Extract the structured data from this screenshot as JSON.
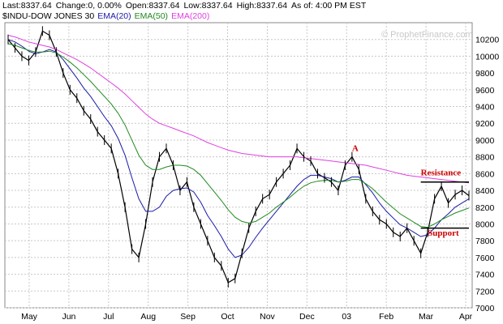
{
  "quote": {
    "last": "Last:8337.64",
    "change": "Change:0, 0.00%",
    "open": "Open:8337.64",
    "low": "Low:8337.64",
    "high": "High:8337.64",
    "asof": "As of: 4:00 PM EST"
  },
  "legend": {
    "symbol": "$INDU-DOW JONES 30",
    "ema20": "EMA(20)",
    "ema50": "EMA(50)",
    "ema200": "EMA(200)"
  },
  "watermark": "© ProphetFinance.com",
  "colors": {
    "price": "#000000",
    "ema20": "#1a1aa8",
    "ema50": "#1f8a1f",
    "ema200": "#e040e0",
    "annotation": "#cc0000",
    "grid": "#c8c8c8"
  },
  "chart_data": {
    "type": "line",
    "ylim": [
      7000,
      10400
    ],
    "yticks": [
      7000,
      7200,
      7400,
      7600,
      7800,
      8000,
      8200,
      8400,
      8600,
      8800,
      9000,
      9200,
      9400,
      9600,
      9800,
      10000,
      10200
    ],
    "xticks": [
      "May",
      "Jun",
      "Jul",
      "Aug",
      "Sep",
      "Oct",
      "Nov",
      "Dec",
      "03",
      "Feb",
      "Mar",
      "Apr"
    ],
    "grid": true,
    "series": [
      {
        "key": "price",
        "values": [
          10200,
          10100,
          10000,
          9950,
          10050,
          10300,
          10250,
          10050,
          9800,
          9600,
          9500,
          9350,
          9250,
          9100,
          9000,
          8900,
          8600,
          8200,
          7700,
          7600,
          8000,
          8500,
          8800,
          8900,
          8700,
          8400,
          8500,
          8200,
          8000,
          7800,
          7600,
          7500,
          7300,
          7350,
          7650,
          7950,
          8150,
          8300,
          8350,
          8500,
          8600,
          8700,
          8900,
          8800,
          8750,
          8600,
          8550,
          8500,
          8400,
          8700,
          8800,
          8650,
          8300,
          8150,
          8050,
          8000,
          7900,
          7850,
          7950,
          7800,
          7650,
          7900,
          8300,
          8450,
          8250,
          8350,
          8400,
          8337.64
        ]
      },
      {
        "key": "ema20",
        "values": [
          10200,
          10170,
          10120,
          10060,
          10030,
          10050,
          10080,
          10050,
          9960,
          9850,
          9740,
          9620,
          9520,
          9400,
          9280,
          9170,
          9020,
          8820,
          8550,
          8300,
          8150,
          8150,
          8200,
          8330,
          8400,
          8420,
          8430,
          8380,
          8260,
          8100,
          7980,
          7850,
          7700,
          7600,
          7630,
          7720,
          7840,
          7950,
          8050,
          8150,
          8250,
          8350,
          8450,
          8530,
          8580,
          8580,
          8560,
          8540,
          8500,
          8520,
          8560,
          8560,
          8470,
          8370,
          8250,
          8150,
          8070,
          7990,
          7950,
          7900,
          7850,
          7870,
          7950,
          8050,
          8120,
          8200,
          8250,
          8300
        ]
      },
      {
        "key": "ema50",
        "values": [
          10150,
          10130,
          10100,
          10070,
          10050,
          10050,
          10060,
          10040,
          9990,
          9930,
          9860,
          9780,
          9700,
          9610,
          9520,
          9430,
          9320,
          9180,
          9000,
          8820,
          8700,
          8650,
          8650,
          8680,
          8700,
          8700,
          8690,
          8650,
          8580,
          8480,
          8380,
          8280,
          8170,
          8080,
          8030,
          8010,
          8030,
          8080,
          8130,
          8200,
          8260,
          8320,
          8390,
          8450,
          8490,
          8510,
          8520,
          8520,
          8500,
          8510,
          8530,
          8530,
          8480,
          8420,
          8340,
          8260,
          8190,
          8120,
          8070,
          8020,
          7970,
          7960,
          8000,
          8050,
          8090,
          8130,
          8160,
          8190
        ]
      },
      {
        "key": "ema200",
        "values": [
          10250,
          10230,
          10200,
          10170,
          10150,
          10130,
          10110,
          10080,
          10040,
          10000,
          9960,
          9910,
          9860,
          9800,
          9740,
          9680,
          9620,
          9550,
          9470,
          9390,
          9310,
          9250,
          9200,
          9170,
          9140,
          9110,
          9080,
          9050,
          9010,
          8970,
          8940,
          8910,
          8880,
          8860,
          8840,
          8830,
          8820,
          8810,
          8800,
          8800,
          8800,
          8800,
          8800,
          8790,
          8780,
          8770,
          8760,
          8750,
          8740,
          8730,
          8720,
          8710,
          8700,
          8680,
          8660,
          8640,
          8620,
          8600,
          8580,
          8570,
          8560,
          8550,
          8540,
          8530,
          8520,
          8510,
          8500,
          8490
        ]
      }
    ],
    "annotations": [
      {
        "text": "A",
        "x": 50,
        "y": 8870
      },
      {
        "text": "Resistance",
        "x": 60,
        "y": 8580,
        "line_y": 8500,
        "line_x": [
          60,
          68
        ]
      },
      {
        "text": "Support",
        "x": 61,
        "y": 7860,
        "line_y": 7950,
        "line_x": [
          60,
          68
        ]
      }
    ]
  }
}
